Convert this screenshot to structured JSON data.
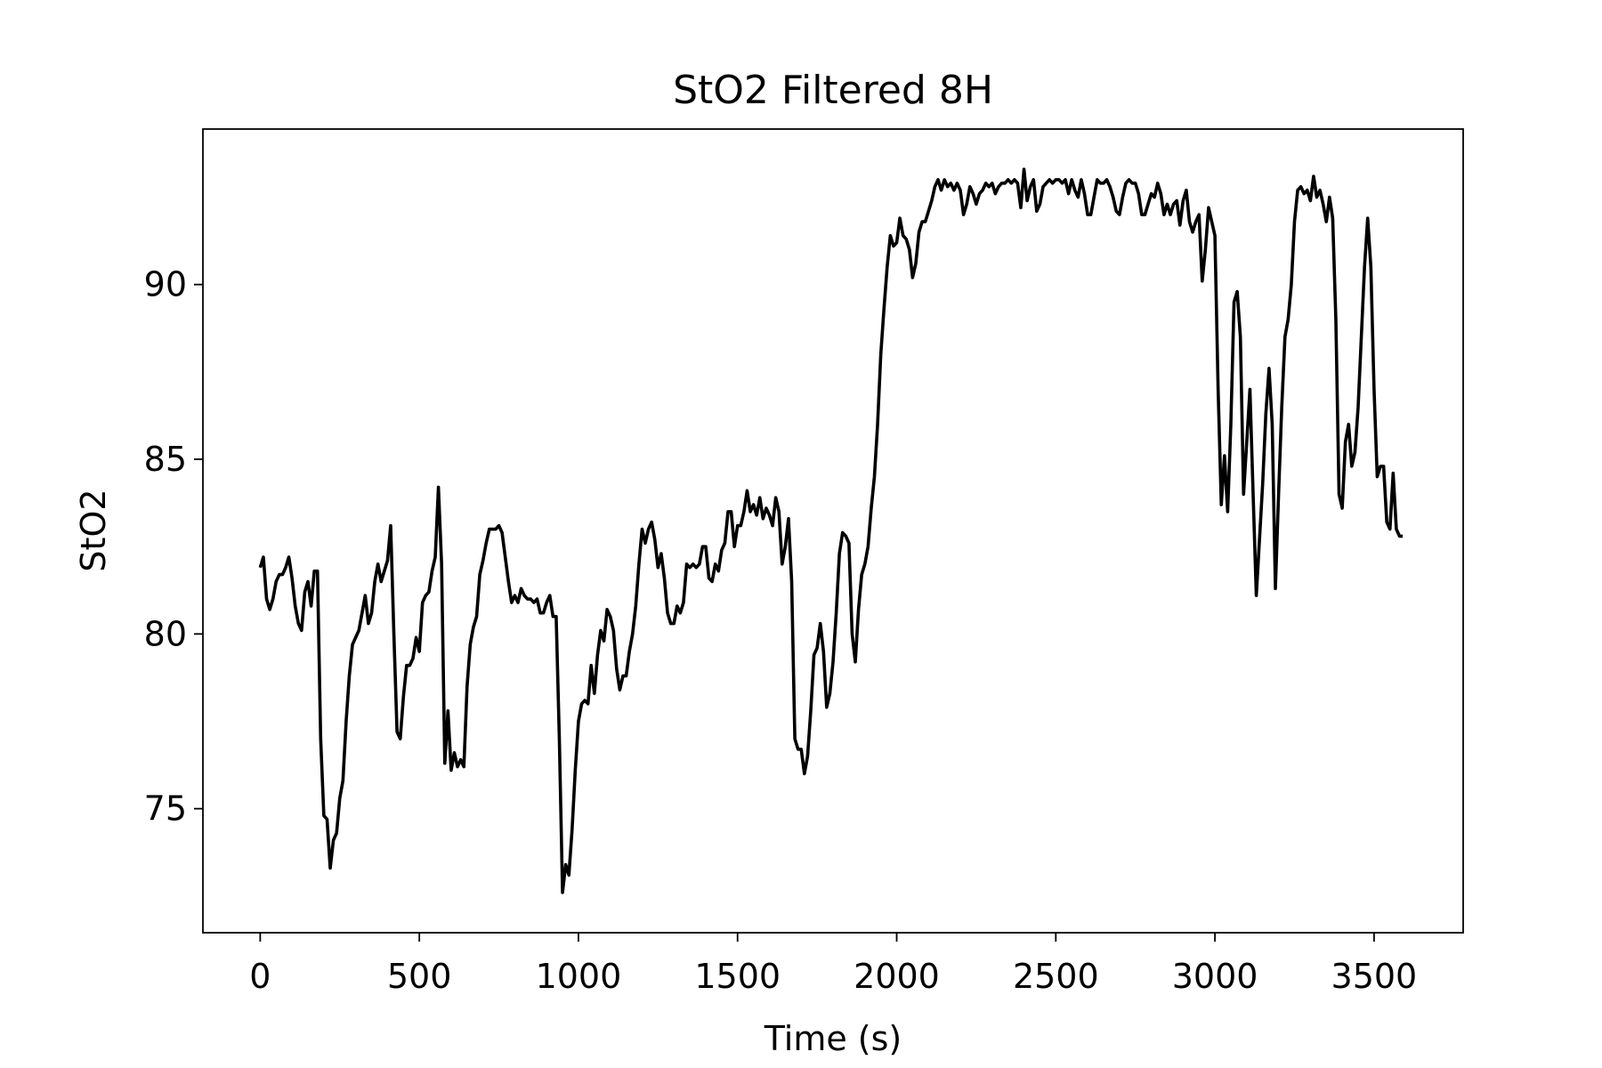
{
  "chart_data": {
    "type": "line",
    "title": "StO2 Filtered 8H",
    "x_label": "Time (s)",
    "y_label": "StO2",
    "x": [
      0,
      10,
      20,
      30,
      40,
      50,
      60,
      70,
      80,
      90,
      100,
      110,
      120,
      130,
      140,
      150,
      160,
      170,
      180,
      190,
      200,
      210,
      220,
      230,
      240,
      250,
      260,
      270,
      280,
      290,
      300,
      310,
      320,
      330,
      340,
      350,
      360,
      370,
      380,
      390,
      400,
      410,
      420,
      430,
      440,
      450,
      460,
      470,
      480,
      490,
      500,
      510,
      520,
      530,
      540,
      550,
      560,
      570,
      580,
      590,
      600,
      610,
      620,
      630,
      640,
      650,
      660,
      670,
      680,
      690,
      700,
      710,
      720,
      730,
      740,
      750,
      760,
      770,
      780,
      790,
      800,
      810,
      820,
      830,
      840,
      850,
      860,
      870,
      880,
      890,
      900,
      910,
      920,
      930,
      940,
      950,
      960,
      970,
      980,
      990,
      1000,
      1010,
      1020,
      1030,
      1040,
      1050,
      1060,
      1070,
      1080,
      1090,
      1100,
      1110,
      1120,
      1130,
      1140,
      1150,
      1160,
      1170,
      1180,
      1190,
      1200,
      1210,
      1220,
      1230,
      1240,
      1250,
      1260,
      1270,
      1280,
      1290,
      1300,
      1310,
      1320,
      1330,
      1340,
      1350,
      1360,
      1370,
      1380,
      1390,
      1400,
      1410,
      1420,
      1430,
      1440,
      1450,
      1460,
      1470,
      1480,
      1490,
      1500,
      1510,
      1520,
      1530,
      1540,
      1550,
      1560,
      1570,
      1580,
      1590,
      1600,
      1610,
      1620,
      1630,
      1640,
      1650,
      1660,
      1670,
      1680,
      1690,
      1700,
      1710,
      1720,
      1730,
      1740,
      1750,
      1760,
      1770,
      1780,
      1790,
      1800,
      1810,
      1820,
      1830,
      1840,
      1850,
      1860,
      1870,
      1880,
      1890,
      1900,
      1910,
      1920,
      1930,
      1940,
      1950,
      1960,
      1970,
      1980,
      1990,
      2000,
      2010,
      2020,
      2030,
      2040,
      2050,
      2060,
      2070,
      2080,
      2090,
      2100,
      2110,
      2120,
      2130,
      2140,
      2150,
      2160,
      2170,
      2180,
      2190,
      2200,
      2210,
      2220,
      2230,
      2240,
      2250,
      2260,
      2270,
      2280,
      2290,
      2300,
      2310,
      2320,
      2330,
      2340,
      2350,
      2360,
      2370,
      2380,
      2390,
      2400,
      2410,
      2420,
      2430,
      2440,
      2450,
      2460,
      2470,
      2480,
      2490,
      2500,
      2510,
      2520,
      2530,
      2540,
      2550,
      2560,
      2570,
      2580,
      2590,
      2600,
      2610,
      2620,
      2630,
      2640,
      2650,
      2660,
      2670,
      2680,
      2690,
      2700,
      2710,
      2720,
      2730,
      2740,
      2750,
      2760,
      2770,
      2780,
      2790,
      2800,
      2810,
      2820,
      2830,
      2840,
      2850,
      2860,
      2870,
      2880,
      2890,
      2900,
      2910,
      2920,
      2930,
      2940,
      2950,
      2960,
      2970,
      2980,
      2990,
      3000,
      3010,
      3020,
      3030,
      3040,
      3050,
      3060,
      3070,
      3080,
      3090,
      3100,
      3110,
      3120,
      3130,
      3140,
      3150,
      3160,
      3170,
      3180,
      3190,
      3200,
      3210,
      3220,
      3230,
      3240,
      3250,
      3260,
      3270,
      3280,
      3290,
      3300,
      3310,
      3320,
      3330,
      3340,
      3350,
      3360,
      3370,
      3380,
      3390,
      3400,
      3410,
      3420,
      3430,
      3440,
      3450,
      3460,
      3470,
      3480,
      3490,
      3500,
      3510,
      3520,
      3530,
      3540,
      3550,
      3560,
      3570,
      3580,
      3590
    ],
    "series": [
      {
        "name": "StO2",
        "color": "#000000",
        "values": [
          81.9,
          82.2,
          81.0,
          80.7,
          81.0,
          81.5,
          81.7,
          81.7,
          81.9,
          82.2,
          81.6,
          80.8,
          80.3,
          80.1,
          81.2,
          81.5,
          80.8,
          81.8,
          81.8,
          77.0,
          74.8,
          74.7,
          73.3,
          74.1,
          74.3,
          75.3,
          75.8,
          77.5,
          78.8,
          79.7,
          79.9,
          80.1,
          80.6,
          81.1,
          80.3,
          80.6,
          81.5,
          82.0,
          81.5,
          81.8,
          82.1,
          83.1,
          80.0,
          77.2,
          77.0,
          78.2,
          79.1,
          79.1,
          79.3,
          79.9,
          79.5,
          80.9,
          81.1,
          81.2,
          81.8,
          82.2,
          84.2,
          82.0,
          76.3,
          77.8,
          76.1,
          76.6,
          76.2,
          76.4,
          76.2,
          78.5,
          79.7,
          80.2,
          80.5,
          81.7,
          82.1,
          82.6,
          83.0,
          83.0,
          83.0,
          83.1,
          82.9,
          82.2,
          81.5,
          80.9,
          81.1,
          80.9,
          81.3,
          81.1,
          81.0,
          81.0,
          80.9,
          81.0,
          80.6,
          80.6,
          80.9,
          81.1,
          80.5,
          80.5,
          77.0,
          72.6,
          73.4,
          73.1,
          74.4,
          76.1,
          77.5,
          78.0,
          78.1,
          78.0,
          79.1,
          78.3,
          79.4,
          80.1,
          79.8,
          80.7,
          80.5,
          80.1,
          79.0,
          78.4,
          78.8,
          78.8,
          79.5,
          80.0,
          80.8,
          82.0,
          83.0,
          82.6,
          83.0,
          83.2,
          82.7,
          81.9,
          82.3,
          81.6,
          80.6,
          80.3,
          80.3,
          80.8,
          80.6,
          80.9,
          82.0,
          81.9,
          82.0,
          81.9,
          82.0,
          82.5,
          82.5,
          81.6,
          81.5,
          82.0,
          81.8,
          82.4,
          82.6,
          83.5,
          83.5,
          82.5,
          83.1,
          83.1,
          83.5,
          84.1,
          83.5,
          83.7,
          83.4,
          83.9,
          83.3,
          83.6,
          83.4,
          83.1,
          83.9,
          83.5,
          82.0,
          82.5,
          83.3,
          81.5,
          77.0,
          76.7,
          76.7,
          76.0,
          76.5,
          77.8,
          79.4,
          79.6,
          80.3,
          79.5,
          77.9,
          78.3,
          79.2,
          80.6,
          82.3,
          82.9,
          82.8,
          82.6,
          80.0,
          79.2,
          80.7,
          81.7,
          82.0,
          82.5,
          83.6,
          84.5,
          86.0,
          88.0,
          89.3,
          90.5,
          91.4,
          91.1,
          91.2,
          91.9,
          91.4,
          91.3,
          91.0,
          90.2,
          90.6,
          91.5,
          91.8,
          91.8,
          92.1,
          92.4,
          92.8,
          93.0,
          92.7,
          93.0,
          92.8,
          92.9,
          92.7,
          92.9,
          92.7,
          92.0,
          92.3,
          92.8,
          92.6,
          92.3,
          92.6,
          92.7,
          92.9,
          92.8,
          92.9,
          92.6,
          92.8,
          92.9,
          92.9,
          93.0,
          92.9,
          93.0,
          92.9,
          92.2,
          93.3,
          92.4,
          92.8,
          93.0,
          92.1,
          92.3,
          92.8,
          92.9,
          93.0,
          92.9,
          93.0,
          93.0,
          92.9,
          93.0,
          92.6,
          93.0,
          92.7,
          92.5,
          93.0,
          92.6,
          92.0,
          92.0,
          92.5,
          93.0,
          92.9,
          92.9,
          93.0,
          92.8,
          92.5,
          92.1,
          92.0,
          92.5,
          92.9,
          93.0,
          92.9,
          92.9,
          92.6,
          92.0,
          92.0,
          92.3,
          92.6,
          92.5,
          92.9,
          92.6,
          92.0,
          92.3,
          92.0,
          92.3,
          92.4,
          91.7,
          92.4,
          92.7,
          91.8,
          91.5,
          91.8,
          92.0,
          90.1,
          91.0,
          92.2,
          91.8,
          91.4,
          87.0,
          83.7,
          85.1,
          83.5,
          86.0,
          89.5,
          89.8,
          88.5,
          84.0,
          85.5,
          87.0,
          84.0,
          81.1,
          82.7,
          84.3,
          86.3,
          87.6,
          86.0,
          81.3,
          84.0,
          86.5,
          88.5,
          89.0,
          90.0,
          91.8,
          92.7,
          92.8,
          92.6,
          92.7,
          92.4,
          93.1,
          92.5,
          92.7,
          92.3,
          91.8,
          92.5,
          91.9,
          89.0,
          84.0,
          83.6,
          85.5,
          86.0,
          84.8,
          85.2,
          86.5,
          88.5,
          90.5,
          91.9,
          90.5,
          87.0,
          84.5,
          84.8,
          84.8,
          83.2,
          83.0,
          84.6,
          83.0,
          82.8,
          82.8
        ]
      }
    ],
    "xlim": [
      -180,
      3780
    ],
    "ylim": [
      71.45,
      94.45
    ],
    "xticks": [
      0,
      500,
      1000,
      1500,
      2000,
      2500,
      3000,
      3500
    ],
    "yticks": [
      75,
      80,
      85,
      90
    ],
    "grid": false
  }
}
